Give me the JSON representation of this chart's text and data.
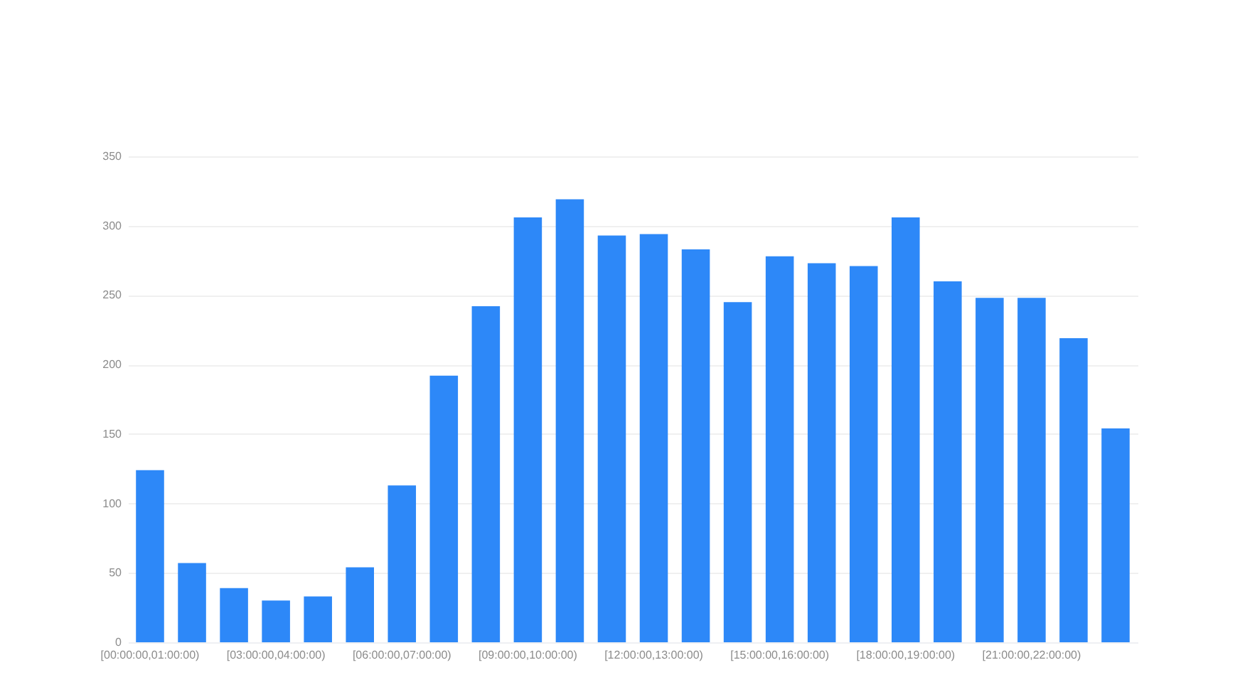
{
  "chart_data": {
    "type": "bar",
    "categories": [
      "[00:00:00,01:00:00)",
      null,
      null,
      "[03:00:00,04:00:00)",
      null,
      null,
      "[06:00:00,07:00:00)",
      null,
      null,
      "[09:00:00,10:00:00)",
      null,
      null,
      "[12:00:00,13:00:00)",
      null,
      null,
      "[15:00:00,16:00:00)",
      null,
      null,
      "[18:00:00,19:00:00)",
      null,
      null,
      "[21:00:00,22:00:00)",
      null,
      null
    ],
    "values": [
      124,
      57,
      39,
      30,
      33,
      54,
      113,
      192,
      242,
      306,
      319,
      293,
      294,
      283,
      245,
      278,
      273,
      271,
      306,
      260,
      248,
      248,
      219,
      154
    ],
    "color": "#2d88f8",
    "ylim": [
      0,
      350
    ],
    "yticks": [
      0,
      50,
      100,
      150,
      200,
      250,
      300,
      350
    ],
    "grid": "y"
  }
}
